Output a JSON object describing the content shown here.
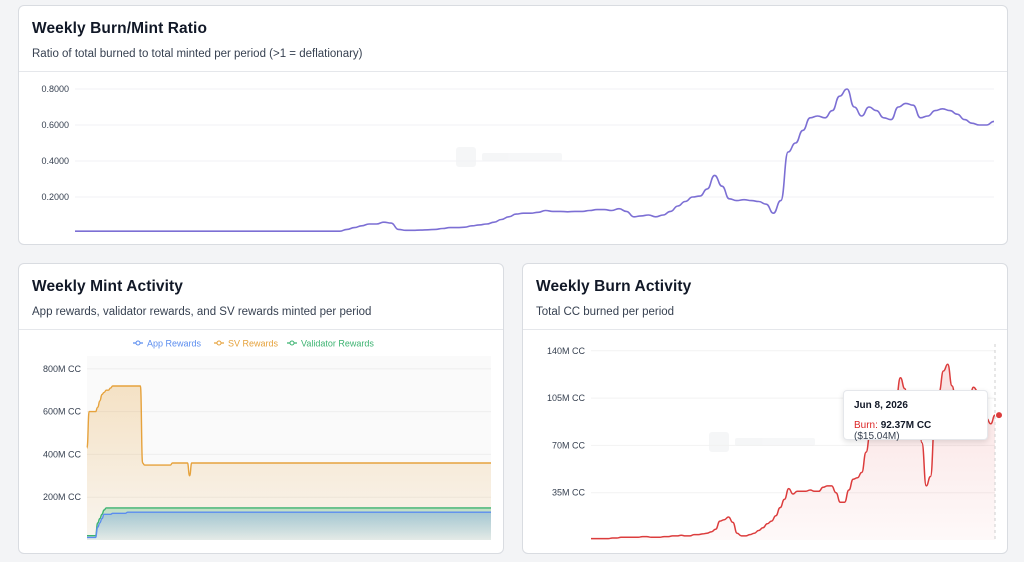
{
  "cards": {
    "ratio": {
      "title": "Weekly Burn/Mint Ratio",
      "subtitle": "Ratio of total burned to total minted per period (>1 = deflationary)"
    },
    "mint": {
      "title": "Weekly Mint Activity",
      "subtitle": "App rewards, validator rewards, and SV rewards minted per period"
    },
    "burn": {
      "title": "Weekly Burn Activity",
      "subtitle": "Total CC burned per period"
    }
  },
  "tooltip": {
    "date": "Jun 8, 2026",
    "label": "Burn:",
    "value": "92.37M CC",
    "usd": "($15.04M)"
  },
  "chart_data": [
    {
      "id": "ratio",
      "type": "line",
      "ylim": [
        0,
        0.85
      ],
      "yticks": [
        0.2,
        0.4,
        0.6,
        0.8
      ],
      "ytick_labels": [
        "0.2000",
        "0.4000",
        "0.6000",
        "0.8000"
      ],
      "color": "#7c6fd4",
      "series": [
        {
          "values": [
            0.01,
            0.01,
            0.01,
            0.01,
            0.01,
            0.01,
            0.01,
            0.01,
            0.01,
            0.01,
            0.01,
            0.01,
            0.01,
            0.01,
            0.01,
            0.01,
            0.01,
            0.01,
            0.01,
            0.01,
            0.01,
            0.01,
            0.01,
            0.01,
            0.01,
            0.01,
            0.01,
            0.01,
            0.01,
            0.01,
            0.01,
            0.01,
            0.01,
            0.01,
            0.01,
            0.01,
            0.01,
            0.02,
            0.03,
            0.04,
            0.05,
            0.05,
            0.06,
            0.055,
            0.02,
            0.015,
            0.015,
            0.016,
            0.018,
            0.02,
            0.025,
            0.03,
            0.03,
            0.032,
            0.04,
            0.045,
            0.05,
            0.06,
            0.075,
            0.09,
            0.105,
            0.11,
            0.11,
            0.115,
            0.125,
            0.12,
            0.12,
            0.118,
            0.12,
            0.12,
            0.125,
            0.13,
            0.13,
            0.125,
            0.135,
            0.12,
            0.09,
            0.095,
            0.1,
            0.09,
            0.1,
            0.12,
            0.15,
            0.175,
            0.2,
            0.205,
            0.245,
            0.32,
            0.26,
            0.19,
            0.18,
            0.185,
            0.18,
            0.175,
            0.16,
            0.11,
            0.18,
            0.45,
            0.5,
            0.57,
            0.64,
            0.65,
            0.64,
            0.68,
            0.76,
            0.8,
            0.7,
            0.65,
            0.7,
            0.68,
            0.64,
            0.63,
            0.7,
            0.72,
            0.71,
            0.64,
            0.65,
            0.68,
            0.69,
            0.68,
            0.66,
            0.63,
            0.61,
            0.6,
            0.6,
            0.62
          ]
        }
      ]
    },
    {
      "id": "mint",
      "type": "area",
      "ylim": [
        0,
        860
      ],
      "yticks": [
        200,
        400,
        600,
        800
      ],
      "ytick_labels": [
        "200M CC",
        "400M CC",
        "600M CC",
        "800M CC"
      ],
      "legend": "top-center",
      "series": [
        {
          "name": "App Rewards",
          "color": "#5b8def",
          "values": [
            12,
            12,
            12,
            12,
            12,
            60,
            80,
            100,
            120,
            120,
            120,
            120,
            125,
            125,
            125,
            125,
            125,
            125,
            125,
            130,
            130,
            130,
            130,
            130,
            130,
            130,
            130,
            130,
            130,
            130,
            130,
            130,
            130,
            130,
            130,
            130,
            130,
            130,
            130,
            130,
            130,
            130,
            130,
            130,
            130,
            130,
            130,
            130,
            130,
            130,
            130,
            130,
            130,
            130,
            130,
            130,
            130,
            130,
            130,
            130,
            130,
            130,
            130,
            130,
            130,
            130,
            130,
            130,
            130,
            130,
            130,
            130,
            130,
            130,
            130,
            130,
            130,
            130,
            130,
            130,
            130,
            130,
            130,
            130,
            130,
            130,
            130,
            130,
            130,
            130,
            130,
            130,
            130,
            130,
            130,
            130,
            130,
            130,
            130,
            130,
            130,
            130,
            130,
            130,
            130,
            130,
            130,
            130,
            130,
            130,
            130,
            130,
            130,
            130,
            130,
            130,
            130,
            130,
            130,
            130,
            130,
            130,
            130,
            130,
            130,
            130,
            130,
            130,
            130,
            130,
            130,
            130,
            130,
            130,
            130,
            130,
            130,
            130,
            130,
            130,
            130,
            130,
            130,
            130,
            130,
            130,
            130,
            130,
            130,
            130,
            130,
            130,
            130,
            130,
            130,
            130,
            130,
            130,
            130,
            130,
            130,
            130,
            130,
            130,
            130,
            130,
            130,
            130,
            130,
            130,
            130,
            130,
            130,
            130,
            130,
            130,
            130,
            130,
            130,
            130,
            130,
            130,
            130,
            130,
            130,
            130,
            130,
            130,
            130,
            130
          ]
        },
        {
          "name": "SV Rewards",
          "color": "#e6a23c",
          "values": [
            430,
            600,
            600,
            600,
            600,
            620,
            650,
            680,
            690,
            700,
            700,
            710,
            720,
            720,
            720,
            720,
            720,
            720,
            720,
            720,
            720,
            720,
            720,
            720,
            720,
            720,
            360,
            350,
            350,
            350,
            350,
            350,
            350,
            350,
            350,
            350,
            350,
            350,
            350,
            350,
            360,
            360,
            360,
            360,
            360,
            360,
            360,
            360,
            300,
            360,
            360,
            360,
            360,
            360,
            360,
            360,
            360,
            360,
            360,
            360,
            360,
            360,
            360,
            360,
            360,
            360,
            360,
            360,
            360,
            360,
            360,
            360,
            360,
            360,
            360,
            360,
            360,
            360,
            360,
            360,
            360,
            360,
            360,
            360,
            360,
            360,
            360,
            360,
            360,
            360,
            360,
            360,
            360,
            360,
            360,
            360,
            360,
            360,
            360,
            360,
            360,
            360,
            360,
            360,
            360,
            360,
            360,
            360,
            360,
            360,
            360,
            360,
            360,
            360,
            360,
            360,
            360,
            360,
            360,
            360,
            360,
            360,
            360,
            360,
            360,
            360,
            360,
            360,
            360,
            360,
            360,
            360,
            360,
            360,
            360,
            360,
            360,
            360,
            360,
            360,
            360,
            360,
            360,
            360,
            360,
            360,
            360,
            360,
            360,
            360,
            360,
            360,
            360,
            360,
            360,
            360,
            360,
            360,
            360,
            360,
            360,
            360,
            360,
            360,
            360,
            360,
            360,
            360,
            360,
            360,
            360,
            360,
            360,
            360,
            360,
            360,
            360,
            360,
            360,
            360,
            360,
            360,
            360,
            360,
            360,
            360,
            360,
            360,
            360,
            360
          ]
        },
        {
          "name": "Validator Rewards",
          "color": "#3cb371",
          "values": [
            20,
            20,
            20,
            20,
            20,
            80,
            100,
            120,
            140,
            150,
            150,
            150,
            150,
            150,
            150,
            150,
            150,
            150,
            150,
            150,
            150,
            150,
            150,
            150,
            150,
            150,
            150,
            150,
            150,
            150,
            150,
            150,
            150,
            150,
            150,
            150,
            150,
            150,
            150,
            150,
            150,
            150,
            150,
            150,
            150,
            150,
            150,
            150,
            150,
            150,
            150,
            150,
            150,
            150,
            150,
            150,
            150,
            150,
            150,
            150,
            150,
            150,
            150,
            150,
            150,
            150,
            150,
            150,
            150,
            150,
            150,
            150,
            150,
            150,
            150,
            150,
            150,
            150,
            150,
            150,
            150,
            150,
            150,
            150,
            150,
            150,
            150,
            150,
            150,
            150,
            150,
            150,
            150,
            150,
            150,
            150,
            150,
            150,
            150,
            150,
            150,
            150,
            150,
            150,
            150,
            150,
            150,
            150,
            150,
            150,
            150,
            150,
            150,
            150,
            150,
            150,
            150,
            150,
            150,
            150,
            150,
            150,
            150,
            150,
            150,
            150,
            150,
            150,
            150,
            150,
            150,
            150,
            150,
            150,
            150,
            150,
            150,
            150,
            150,
            150,
            150,
            150,
            150,
            150,
            150,
            150,
            150,
            150,
            150,
            150,
            150,
            150,
            150,
            150,
            150,
            150,
            150,
            150,
            150,
            150,
            150,
            150,
            150,
            150,
            150,
            150,
            150,
            150,
            150,
            150,
            150,
            150,
            150,
            150,
            150,
            150,
            150,
            150,
            150,
            150,
            150,
            150,
            150,
            150,
            150,
            150,
            150,
            150,
            150,
            150
          ]
        }
      ]
    },
    {
      "id": "burn",
      "type": "area",
      "ylim": [
        0,
        145
      ],
      "yticks": [
        35,
        70,
        105,
        140
      ],
      "ytick_labels": [
        "35M CC",
        "70M CC",
        "105M CC",
        "140M CC"
      ],
      "color": "#dc3c3c",
      "series": [
        {
          "name": "Burn",
          "values": [
            1,
            1,
            1,
            1,
            1,
            1.5,
            1.5,
            2,
            2,
            2,
            2,
            2,
            2.5,
            2.5,
            2,
            2,
            2,
            2.5,
            2.5,
            3,
            3,
            3.5,
            3,
            3,
            4,
            4,
            4.5,
            5,
            6,
            8,
            14,
            15,
            17,
            13,
            5,
            3,
            3,
            4,
            5,
            7,
            9,
            12,
            14,
            18,
            24,
            30,
            38,
            34,
            36,
            36,
            36,
            37,
            36,
            36,
            39,
            40,
            40,
            35,
            28,
            28,
            37,
            45,
            46,
            50,
            65,
            80,
            100,
            92,
            75,
            95,
            78,
            105,
            120,
            112,
            96,
            110,
            110,
            72,
            40,
            47,
            88,
            110,
            125,
            130,
            114,
            100,
            84,
            80,
            105,
            113,
            110,
            100,
            90,
            86,
            92.37
          ]
        }
      ]
    }
  ]
}
